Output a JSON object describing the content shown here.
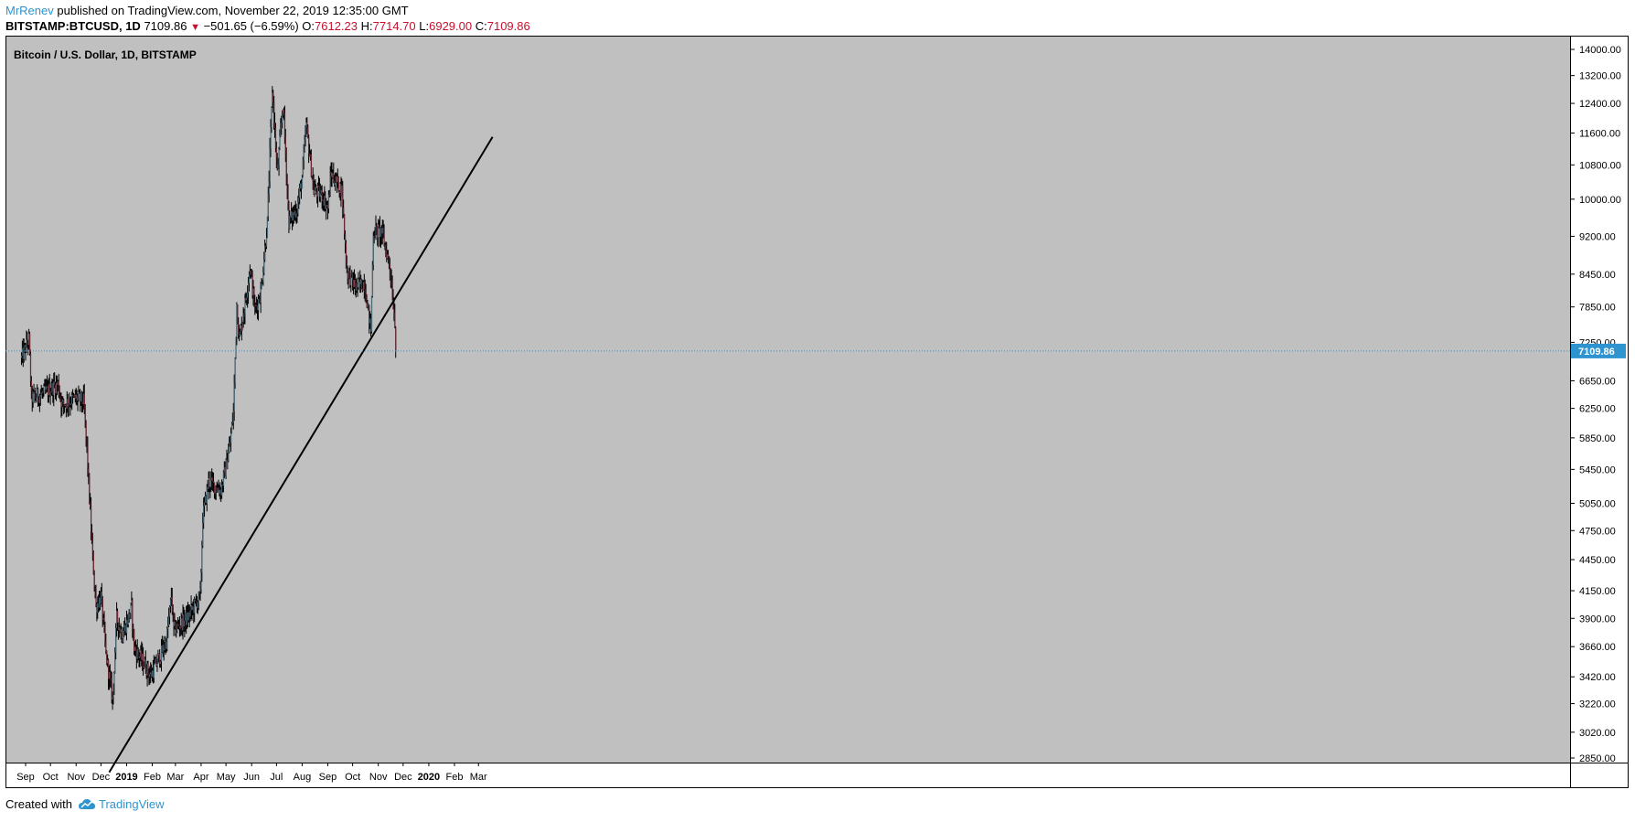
{
  "header": {
    "author": "MrRenev",
    "published": "published on TradingView.com, November 22, 2019 12:35:00 GMT",
    "symbol": "BITSTAMP:BTCUSD, 1D",
    "last": "7109.86",
    "change": "−501.65 (−6.59%)",
    "o_label": "O:",
    "o_value": "7612.23",
    "h_label": "H:",
    "h_value": "7714.70",
    "l_label": "L:",
    "l_value": "6929.00",
    "c_label": "C:",
    "c_value": "7109.86"
  },
  "footer": {
    "created_with": "Created with",
    "brand": "TradingView"
  },
  "colors": {
    "plot_bg": "#c0c0c0",
    "candle": "#000000",
    "price_line": "#2e94d0",
    "price_badge": "#2e94d0",
    "trendline": "#000000",
    "accent": "#2e94d0",
    "down": "#c8102e"
  },
  "chart_data": {
    "type": "line",
    "title": "Bitcoin / U.S. Dollar, 1D, BITSTAMP",
    "scale": "log",
    "last_price": 7109.86,
    "last_price_label": "7109.86",
    "y_ticks": [
      "14000.00",
      "13200.00",
      "12400.00",
      "11600.00",
      "10800.00",
      "10000.00",
      "9200.00",
      "8450.00",
      "7850.00",
      "7250.00",
      "6650.00",
      "6250.00",
      "5850.00",
      "5450.00",
      "5050.00",
      "4750.00",
      "4450.00",
      "4150.00",
      "3900.00",
      "3660.00",
      "3420.00",
      "3220.00",
      "3020.00",
      "2850.00"
    ],
    "x_ticks": [
      "Sep",
      "Oct",
      "Nov",
      "Dec",
      "2019",
      "Feb",
      "Mar",
      "Apr",
      "May",
      "Jun",
      "Jul",
      "Aug",
      "Sep",
      "Oct",
      "Nov",
      "Dec",
      "2020",
      "Feb",
      "Mar"
    ],
    "x_ticks_bold": [
      "2019",
      "2020"
    ],
    "price_path": [
      [
        "2018-08-27",
        7000
      ],
      [
        "2018-09-05",
        7300
      ],
      [
        "2018-09-08",
        6400
      ],
      [
        "2018-09-20",
        6450
      ],
      [
        "2018-10-10",
        6600
      ],
      [
        "2018-10-15",
        6300
      ],
      [
        "2018-11-01",
        6400
      ],
      [
        "2018-11-10",
        6350
      ],
      [
        "2018-11-14",
        5700
      ],
      [
        "2018-11-20",
        4600
      ],
      [
        "2018-11-25",
        4000
      ],
      [
        "2018-12-01",
        4100
      ],
      [
        "2018-12-07",
        3600
      ],
      [
        "2018-12-15",
        3250
      ],
      [
        "2018-12-20",
        3900
      ],
      [
        "2018-12-27",
        3750
      ],
      [
        "2019-01-07",
        4000
      ],
      [
        "2019-01-10",
        3650
      ],
      [
        "2019-01-20",
        3550
      ],
      [
        "2019-01-30",
        3430
      ],
      [
        "2019-02-08",
        3550
      ],
      [
        "2019-02-18",
        3700
      ],
      [
        "2019-02-24",
        4100
      ],
      [
        "2019-02-27",
        3800
      ],
      [
        "2019-03-15",
        3900
      ],
      [
        "2019-03-31",
        4100
      ],
      [
        "2019-04-03",
        4900
      ],
      [
        "2019-04-10",
        5300
      ],
      [
        "2019-04-25",
        5200
      ],
      [
        "2019-05-05",
        5700
      ],
      [
        "2019-05-10",
        6200
      ],
      [
        "2019-05-14",
        7900
      ],
      [
        "2019-05-17",
        7300
      ],
      [
        "2019-05-25",
        8000
      ],
      [
        "2019-05-30",
        8600
      ],
      [
        "2019-06-05",
        7800
      ],
      [
        "2019-06-12",
        8100
      ],
      [
        "2019-06-20",
        9500
      ],
      [
        "2019-06-26",
        12800
      ],
      [
        "2019-07-02",
        10600
      ],
      [
        "2019-07-09",
        12400
      ],
      [
        "2019-07-16",
        9500
      ],
      [
        "2019-07-26",
        9800
      ],
      [
        "2019-08-01",
        10500
      ],
      [
        "2019-08-06",
        11800
      ],
      [
        "2019-08-15",
        10200
      ],
      [
        "2019-08-25",
        10100
      ],
      [
        "2019-09-01",
        9800
      ],
      [
        "2019-09-05",
        10600
      ],
      [
        "2019-09-18",
        10200
      ],
      [
        "2019-09-24",
        8500
      ],
      [
        "2019-10-05",
        8200
      ],
      [
        "2019-10-15",
        8300
      ],
      [
        "2019-10-23",
        7450
      ],
      [
        "2019-10-26",
        9300
      ],
      [
        "2019-11-05",
        9300
      ],
      [
        "2019-11-15",
        8600
      ],
      [
        "2019-11-21",
        7612
      ],
      [
        "2019-11-22",
        7109.86
      ]
    ],
    "trendline": [
      [
        "2018-12-11",
        2760
      ],
      [
        "2020-03-18",
        11500
      ]
    ]
  }
}
